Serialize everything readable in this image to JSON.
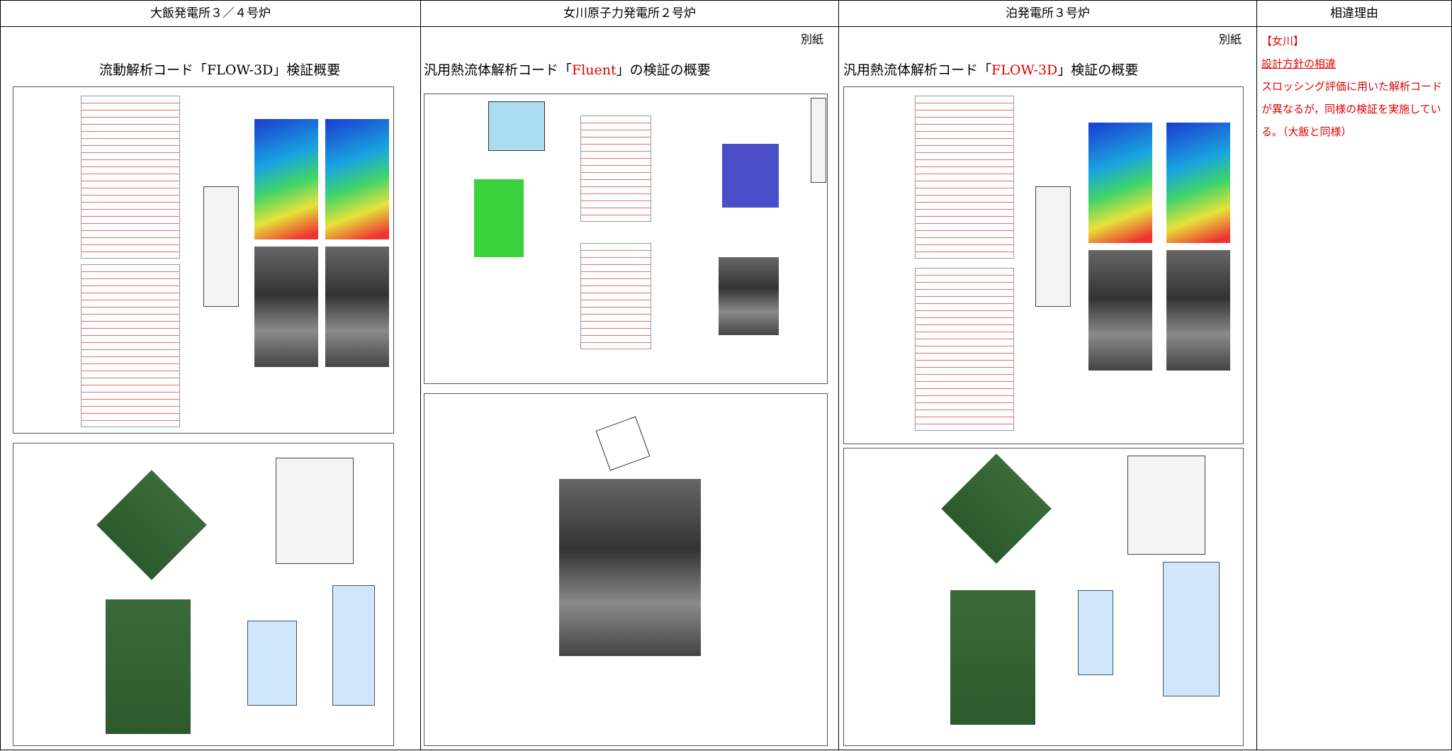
{
  "header": {
    "columns": [
      "大飯発電所３／４号炉",
      "女川原子力発電所２号炉",
      "泊発電所３号炉",
      "相違理由"
    ]
  },
  "ohi": {
    "title": "流動解析コード「FLOW-3D」検証概要"
  },
  "onagawa": {
    "attachment": "別紙",
    "title": {
      "pre": "汎用熱流体解析コード「",
      "code": "Fluent",
      "post": "」の検証の概要"
    }
  },
  "tomari": {
    "attachment": "別紙",
    "title": {
      "pre": "汎用熱流体解析コード「",
      "code": "FLOW-3D",
      "post": "」検証の概要"
    }
  },
  "reason": {
    "plant": "【女川】",
    "category": "設計方針の相違",
    "text": "スロッシング評価に用いた解析コードが異なるが，同様の検証を実施している。（大飯と同様）"
  }
}
